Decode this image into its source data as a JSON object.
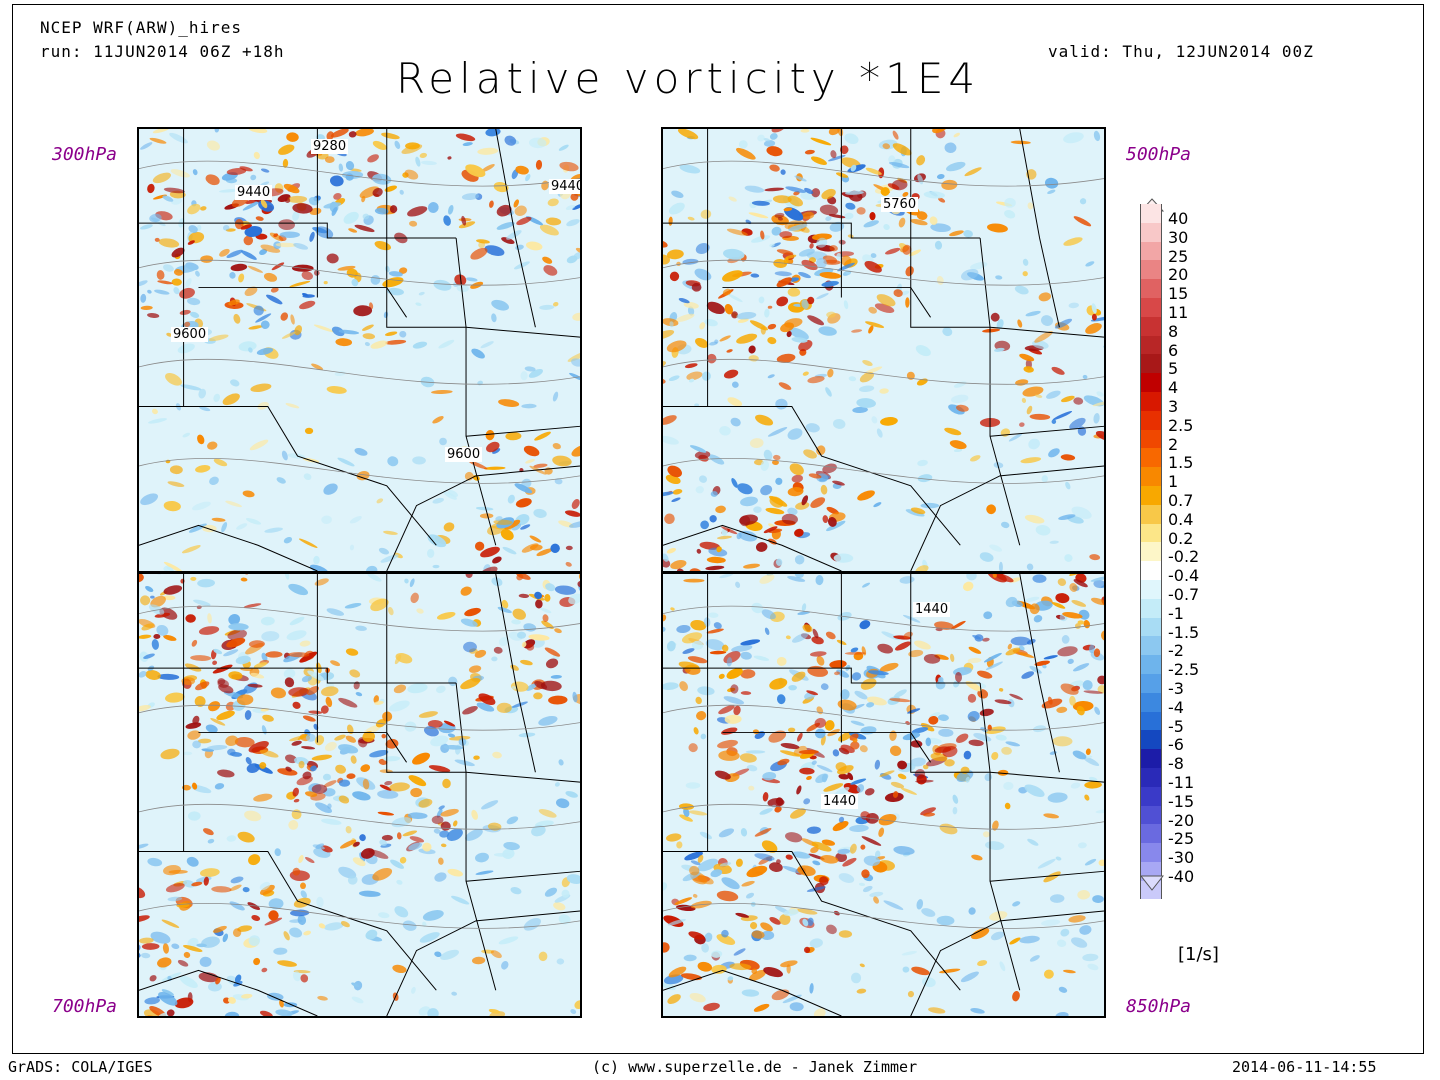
{
  "header": {
    "model": "NCEP WRF(ARW)_hires",
    "run": "run: 11JUN2014 06Z +18h",
    "valid": "valid: Thu, 12JUN2014 00Z",
    "title": "Relative vorticity *1E4"
  },
  "panels": [
    {
      "level": "300hPa",
      "contours": [
        "9280",
        "9440",
        "9440",
        "9600",
        "9600"
      ]
    },
    {
      "level": "500hPa",
      "contours": [
        "5760"
      ]
    },
    {
      "level": "700hPa",
      "contours": []
    },
    {
      "level": "850hPa",
      "contours": [
        "1440",
        "1440"
      ]
    }
  ],
  "colorbar": {
    "units": "[1/s]",
    "labels": [
      "40",
      "30",
      "25",
      "20",
      "15",
      "11",
      "8",
      "6",
      "5",
      "4",
      "3",
      "2.5",
      "2",
      "1.5",
      "1",
      "0.7",
      "0.4",
      "0.2",
      "-0.2",
      "-0.4",
      "-0.7",
      "-1",
      "-1.5",
      "-2",
      "-2.5",
      "-3",
      "-4",
      "-5",
      "-6",
      "-8",
      "-11",
      "-15",
      "-20",
      "-25",
      "-30",
      "-40"
    ],
    "colors": [
      "#fce4e4",
      "#f8c8c8",
      "#f2a6a6",
      "#ea8484",
      "#e06262",
      "#d84848",
      "#c83232",
      "#b82626",
      "#a81818",
      "#c00000",
      "#d81800",
      "#e83000",
      "#f04800",
      "#f86800",
      "#f88800",
      "#f8a800",
      "#f8c848",
      "#fce688",
      "#fdf6c8",
      "#ffffff",
      "#e0f6fc",
      "#c4ecf8",
      "#a8dcf4",
      "#8cc8f0",
      "#6eb4ec",
      "#56a0e8",
      "#3c88e0",
      "#2870d8",
      "#1448c0",
      "#1c1ca8",
      "#2a2ab8",
      "#3a3ac8",
      "#5050d4",
      "#6a6ae0",
      "#8888ec",
      "#a8a8f4",
      "#cacafa"
    ]
  },
  "footer": {
    "left": "GrADS: COLA/IGES",
    "center": "(c) www.superzelle.de - Janek Zimmer",
    "right": "2014-06-11-14:55"
  }
}
